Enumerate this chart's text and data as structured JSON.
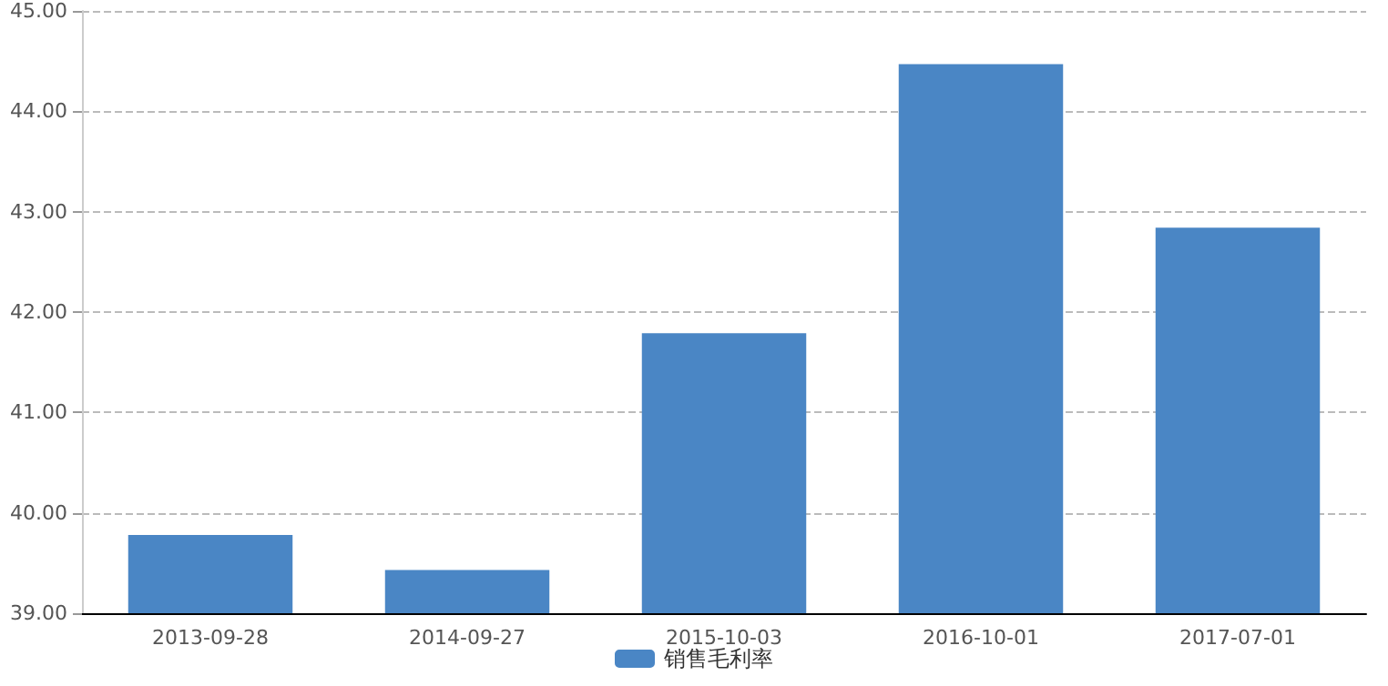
{
  "chart_data": {
    "type": "bar",
    "categories": [
      "2013-09-28",
      "2014-09-27",
      "2015-10-03",
      "2016-10-01",
      "2017-07-01"
    ],
    "series": [
      {
        "name": "销售毛利率",
        "color": "#4a86c5",
        "values": [
          39.78,
          39.43,
          41.79,
          44.47,
          42.84
        ]
      }
    ],
    "ylim": [
      39,
      45
    ],
    "yticks": [
      {
        "value": 39,
        "label": "39.00"
      },
      {
        "value": 40,
        "label": "40.00"
      },
      {
        "value": 41,
        "label": "41.00"
      },
      {
        "value": 42,
        "label": "42.00"
      },
      {
        "value": 43,
        "label": "43.00"
      },
      {
        "value": 44,
        "label": "44.00"
      },
      {
        "value": 45,
        "label": "45.00"
      }
    ],
    "grid": "y",
    "legend": "bottom"
  }
}
